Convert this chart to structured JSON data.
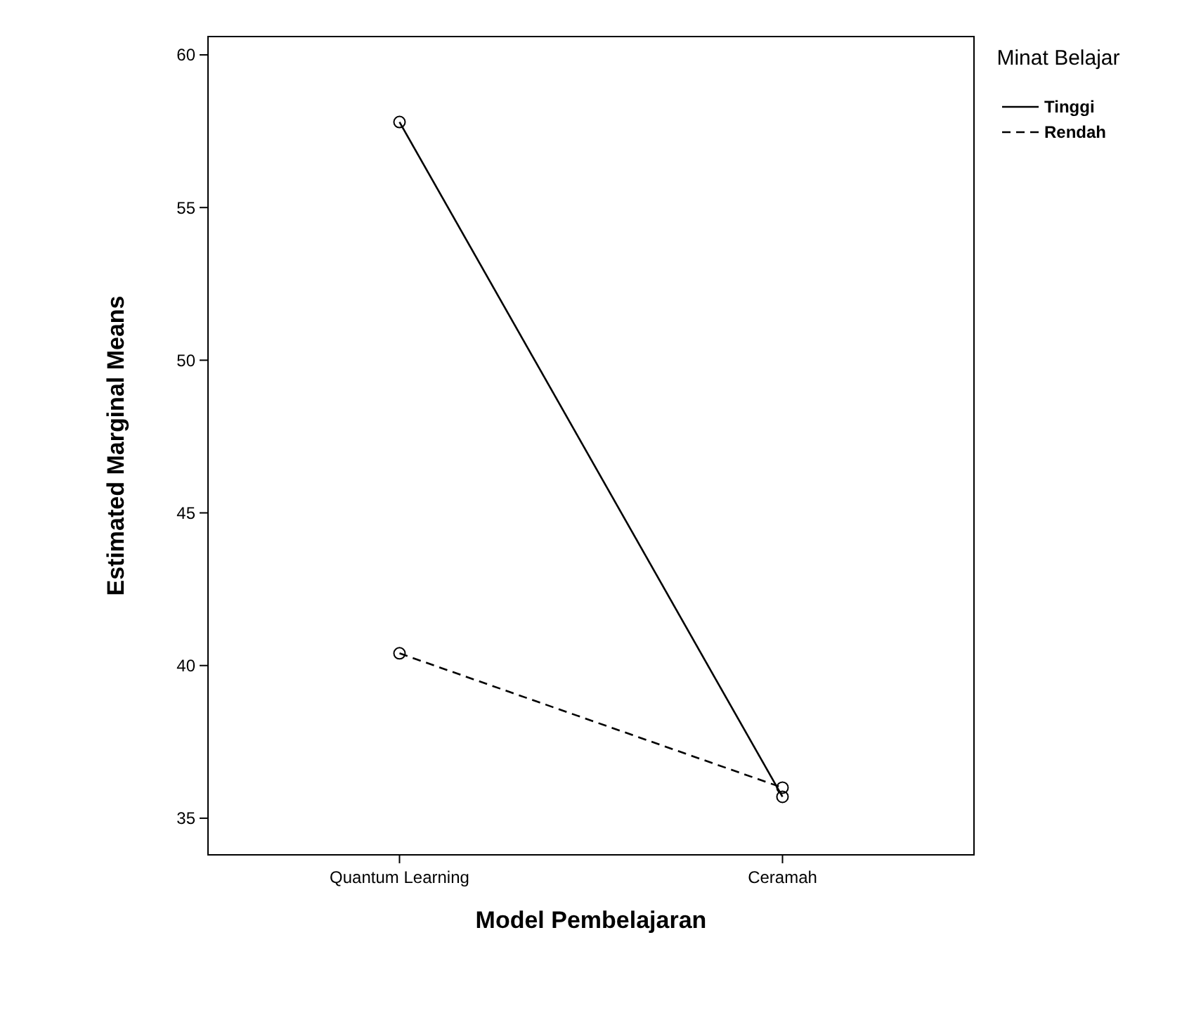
{
  "chart_data": {
    "type": "line",
    "xlabel": "Model Pembelajaran",
    "ylabel": "Estimated Marginal Means",
    "legend_title": "Minat Belajar",
    "categories": [
      "Quantum Learning",
      "Ceramah"
    ],
    "series": [
      {
        "name": "Tinggi",
        "color": "#000000",
        "values": [
          57.8,
          35.7
        ],
        "line_style": "solid"
      },
      {
        "name": "Rendah",
        "color": "#000000",
        "values": [
          40.4,
          36.0
        ],
        "line_style": "dashed"
      }
    ],
    "ylim": [
      33.8,
      60.6
    ],
    "yticks": [
      35,
      40,
      45,
      50,
      55,
      60
    ],
    "marker": "circle",
    "legend": "top right",
    "grid": false
  }
}
